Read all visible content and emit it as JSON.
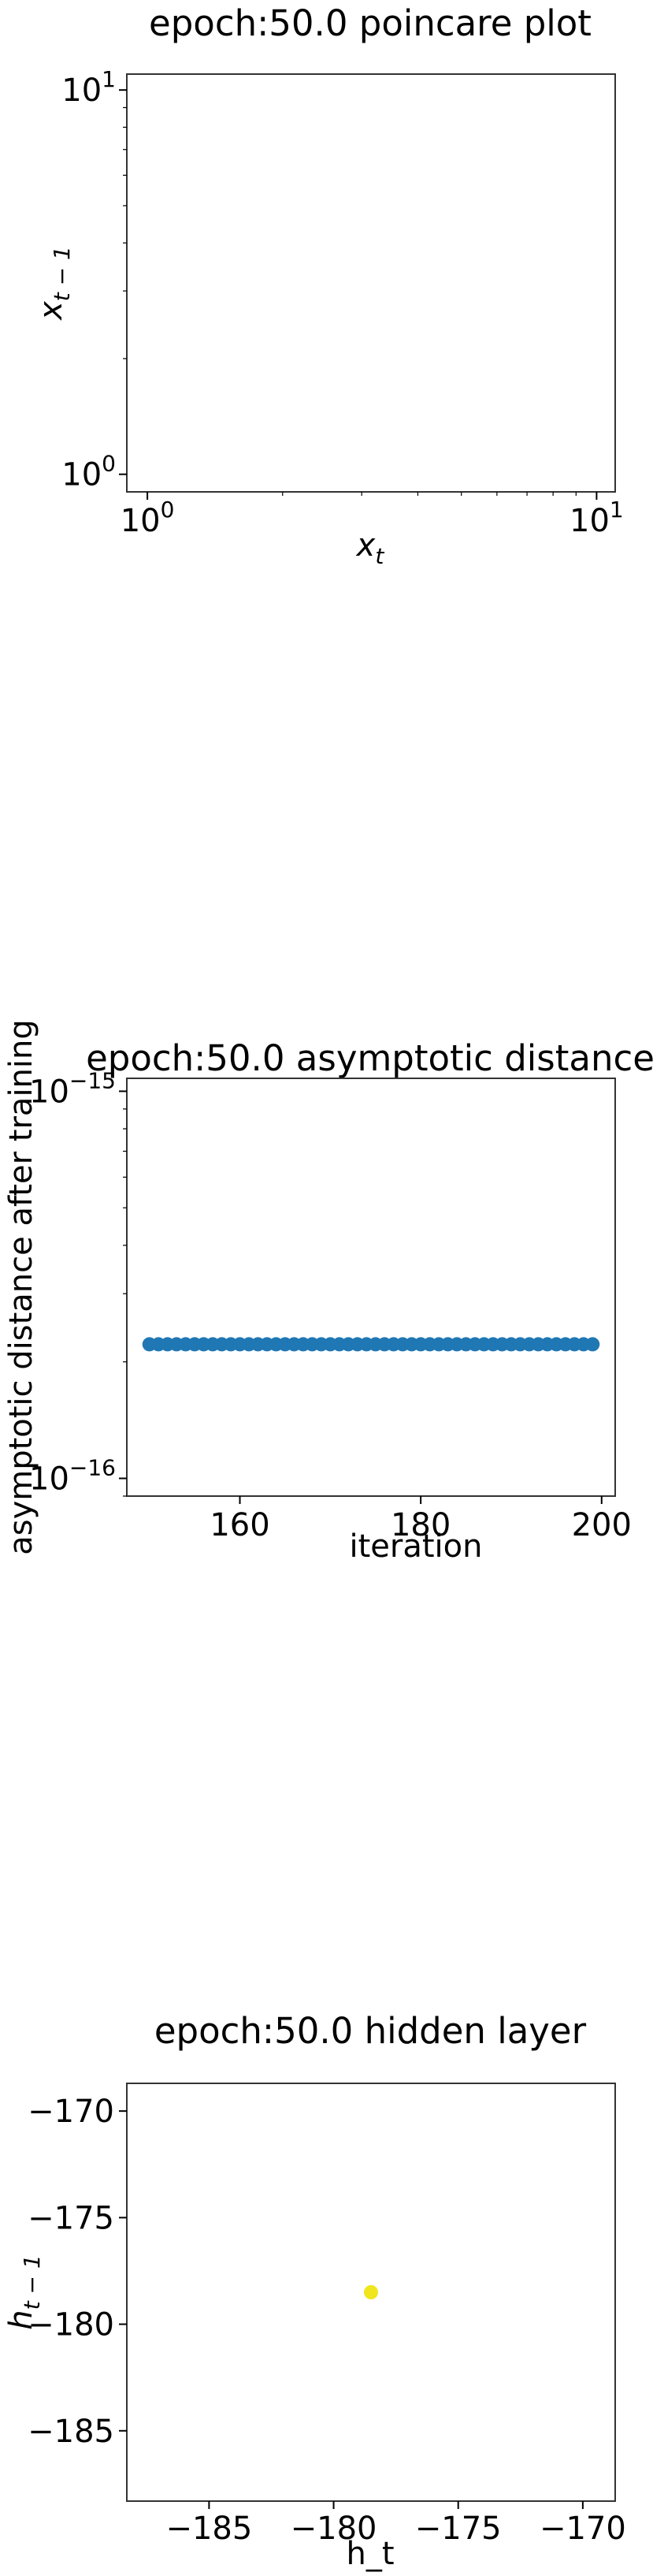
{
  "chart_data": [
    {
      "type": "scatter",
      "title": "epoch:50.0 poincare plot",
      "xlabel": "x",
      "xlabel_sub": "t",
      "ylabel": "x",
      "ylabel_sub": "t − 1",
      "xscale": "log",
      "yscale": "log",
      "xlim": [
        0.9,
        11
      ],
      "ylim": [
        0.9,
        11
      ],
      "xticks": [
        {
          "value": 1,
          "base": "10",
          "exp": "0"
        },
        {
          "value": 10,
          "base": "10",
          "exp": "1"
        }
      ],
      "yticks": [
        {
          "value": 1,
          "base": "10",
          "exp": "0"
        },
        {
          "value": 10,
          "base": "10",
          "exp": "1"
        }
      ],
      "grid": false,
      "points": []
    },
    {
      "type": "scatter",
      "title": "epoch:50.0 asymptotic distance",
      "xlabel": "iteration",
      "ylabel": "asymptotic distance after training",
      "yscale": "log",
      "xlim": [
        147.5,
        201.5
      ],
      "ylim": [
        9e-17,
        1.08e-15
      ],
      "xticks": [
        {
          "value": 160,
          "label": "160"
        },
        {
          "value": 180,
          "label": "180"
        },
        {
          "value": 200,
          "label": "200"
        }
      ],
      "yticks": [
        {
          "value": 1e-16,
          "base": "10",
          "exp": "−16"
        },
        {
          "value": 1e-15,
          "base": "10",
          "exp": "−15"
        }
      ],
      "grid": false,
      "color": "#1f77b4",
      "x_start": 150,
      "x_end": 199,
      "y_value": 2.22e-16
    },
    {
      "type": "scatter",
      "title": "epoch:50.0 hidden layer",
      "xlabel": "h_t",
      "ylabel": "h",
      "ylabel_sub": "t − 1",
      "xlim": [
        -188.3,
        -168.7
      ],
      "ylim": [
        -188.3,
        -168.7
      ],
      "xticks": [
        {
          "value": -185,
          "label": "−185"
        },
        {
          "value": -180,
          "label": "−180"
        },
        {
          "value": -175,
          "label": "−175"
        },
        {
          "value": -170,
          "label": "−170"
        }
      ],
      "yticks": [
        {
          "value": -185,
          "label": "−185"
        },
        {
          "value": -180,
          "label": "−180"
        },
        {
          "value": -175,
          "label": "−175"
        },
        {
          "value": -170,
          "label": "−170"
        }
      ],
      "grid": false,
      "color": "#f1e51d",
      "points": [
        {
          "x": -178.5,
          "y": -178.5
        }
      ]
    }
  ]
}
